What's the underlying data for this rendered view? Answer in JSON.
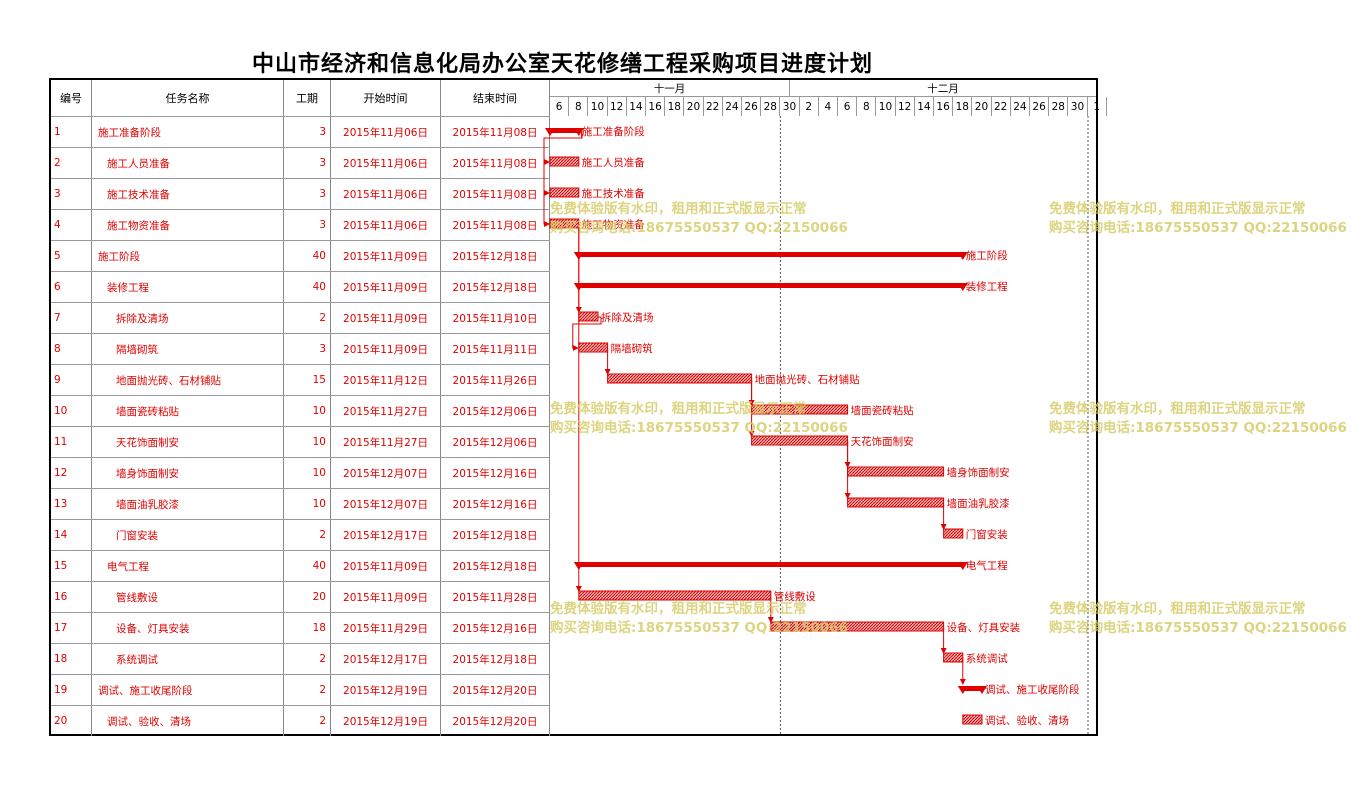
{
  "title": "中山市经济和信息化局办公室天花修缮工程采购项目进度计划",
  "headers": {
    "id": "编号",
    "name": "任务名称",
    "duration": "工期",
    "start": "开始时间",
    "end": "结束时间"
  },
  "months": [
    "十一月",
    "十二月"
  ],
  "days": [
    "6",
    "8",
    "10",
    "12",
    "14",
    "16",
    "18",
    "20",
    "22",
    "24",
    "26",
    "28",
    "30",
    "2",
    "4",
    "6",
    "8",
    "10",
    "12",
    "14",
    "16",
    "18",
    "20",
    "22",
    "24",
    "26",
    "28",
    "30",
    "1"
  ],
  "colors": {
    "task": "#e00000",
    "grid": "#999999",
    "watermark": "#d6cd6a"
  },
  "tasks": [
    {
      "id": "1",
      "name": "施工准备阶段",
      "indent": 0,
      "duration": "3",
      "start": "2015年11月06日",
      "end": "2015年11月08日",
      "summary": true
    },
    {
      "id": "2",
      "name": "施工人员准备",
      "indent": 1,
      "duration": "3",
      "start": "2015年11月06日",
      "end": "2015年11月08日",
      "summary": false
    },
    {
      "id": "3",
      "name": "施工技术准备",
      "indent": 1,
      "duration": "3",
      "start": "2015年11月06日",
      "end": "2015年11月08日",
      "summary": false
    },
    {
      "id": "4",
      "name": "施工物资准备",
      "indent": 1,
      "duration": "3",
      "start": "2015年11月06日",
      "end": "2015年11月08日",
      "summary": false
    },
    {
      "id": "5",
      "name": "施工阶段",
      "indent": 0,
      "duration": "40",
      "start": "2015年11月09日",
      "end": "2015年12月18日",
      "summary": true
    },
    {
      "id": "6",
      "name": "装修工程",
      "indent": 1,
      "duration": "40",
      "start": "2015年11月09日",
      "end": "2015年12月18日",
      "summary": true
    },
    {
      "id": "7",
      "name": "拆除及清场",
      "indent": 2,
      "duration": "2",
      "start": "2015年11月09日",
      "end": "2015年11月10日",
      "summary": false
    },
    {
      "id": "8",
      "name": "隔墙砌筑",
      "indent": 2,
      "duration": "3",
      "start": "2015年11月09日",
      "end": "2015年11月11日",
      "summary": false
    },
    {
      "id": "9",
      "name": "地面抛光砖、石材铺贴",
      "indent": 2,
      "duration": "15",
      "start": "2015年11月12日",
      "end": "2015年11月26日",
      "summary": false
    },
    {
      "id": "10",
      "name": "墙面瓷砖粘贴",
      "indent": 2,
      "duration": "10",
      "start": "2015年11月27日",
      "end": "2015年12月06日",
      "summary": false
    },
    {
      "id": "11",
      "name": "天花饰面制安",
      "indent": 2,
      "duration": "10",
      "start": "2015年11月27日",
      "end": "2015年12月06日",
      "summary": false
    },
    {
      "id": "12",
      "name": "墙身饰面制安",
      "indent": 2,
      "duration": "10",
      "start": "2015年12月07日",
      "end": "2015年12月16日",
      "summary": false
    },
    {
      "id": "13",
      "name": "墙面油乳胶漆",
      "indent": 2,
      "duration": "10",
      "start": "2015年12月07日",
      "end": "2015年12月16日",
      "summary": false
    },
    {
      "id": "14",
      "name": "门窗安装",
      "indent": 2,
      "duration": "2",
      "start": "2015年12月17日",
      "end": "2015年12月18日",
      "summary": false
    },
    {
      "id": "15",
      "name": "电气工程",
      "indent": 1,
      "duration": "40",
      "start": "2015年11月09日",
      "end": "2015年12月18日",
      "summary": true
    },
    {
      "id": "16",
      "name": "管线敷设",
      "indent": 2,
      "duration": "20",
      "start": "2015年11月09日",
      "end": "2015年11月28日",
      "summary": false
    },
    {
      "id": "17",
      "name": "设备、灯具安装",
      "indent": 2,
      "duration": "18",
      "start": "2015年11月29日",
      "end": "2015年12月16日",
      "summary": false
    },
    {
      "id": "18",
      "name": "系统调试",
      "indent": 2,
      "duration": "2",
      "start": "2015年12月17日",
      "end": "2015年12月18日",
      "summary": false
    },
    {
      "id": "19",
      "name": "调试、施工收尾阶段",
      "indent": 0,
      "duration": "2",
      "start": "2015年12月19日",
      "end": "2015年12月20日",
      "summary": true
    },
    {
      "id": "20",
      "name": "调试、验收、清场",
      "indent": 1,
      "duration": "2",
      "start": "2015年12月19日",
      "end": "2015年12月20日",
      "summary": false
    }
  ],
  "watermark": {
    "line1": "免费体验版有水印，租用和正式版显示正常",
    "line2": "购买咨询电话:18675550537 QQ:22150066"
  }
}
